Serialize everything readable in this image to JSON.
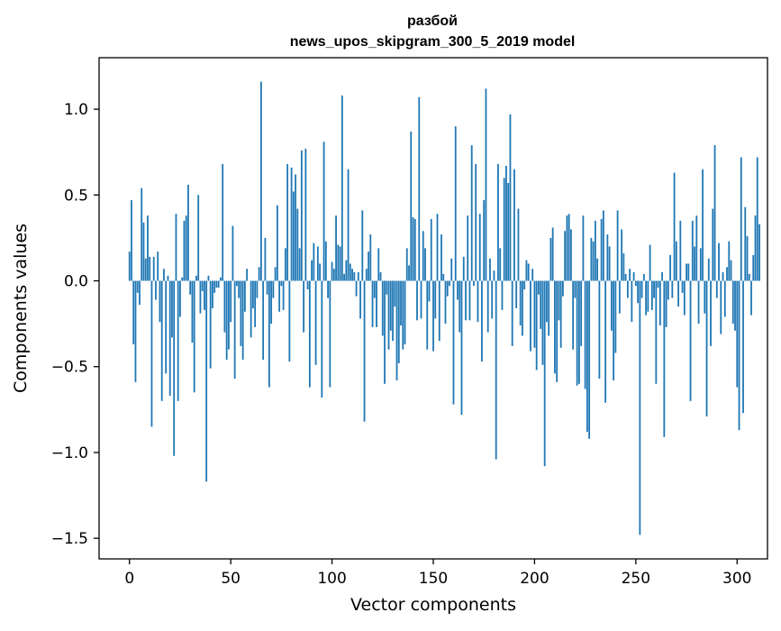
{
  "chart_data": {
    "type": "bar",
    "title": "разбой",
    "subtitle": "news_upos_skipgram_300_5_2019 model",
    "xlabel": "Vector components",
    "ylabel": "Components values",
    "xlim": [
      -15,
      315
    ],
    "ylim": [
      -1.62,
      1.3
    ],
    "xticks": [
      0,
      50,
      100,
      150,
      200,
      250,
      300
    ],
    "xtick_labels": [
      "0",
      "50",
      "100",
      "150",
      "200",
      "250",
      "300"
    ],
    "yticks": [
      -1.5,
      -1.0,
      -0.5,
      0.0,
      0.5,
      1.0
    ],
    "ytick_labels": [
      "−1.5",
      "−1.0",
      "−0.5",
      "0.0",
      "0.5",
      "1.0"
    ],
    "color": "#1f77b4",
    "bar_width": 0.8,
    "values": [
      0.17,
      0.47,
      -0.37,
      -0.59,
      -0.07,
      -0.14,
      0.54,
      0.34,
      0.13,
      0.38,
      0.14,
      -0.85,
      0.14,
      -0.11,
      0.17,
      -0.24,
      -0.7,
      0.07,
      -0.54,
      0.03,
      -0.67,
      -0.33,
      -1.02,
      0.39,
      -0.7,
      -0.21,
      0.02,
      0.35,
      0.38,
      0.56,
      -0.08,
      -0.36,
      -0.65,
      0.03,
      0.5,
      -0.19,
      -0.06,
      -0.17,
      -1.17,
      0.03,
      -0.51,
      -0.16,
      -0.07,
      -0.04,
      -0.04,
      0.02,
      0.68,
      -0.3,
      -0.46,
      -0.4,
      -0.24,
      0.32,
      -0.57,
      -0.03,
      -0.1,
      -0.38,
      -0.46,
      -0.18,
      0.07,
      0.0,
      -0.33,
      -0.16,
      -0.27,
      -0.1,
      0.08,
      1.16,
      -0.46,
      0.25,
      -0.08,
      -0.62,
      -0.25,
      -0.1,
      0.08,
      0.44,
      -0.18,
      -0.03,
      -0.17,
      0.19,
      0.68,
      -0.47,
      0.66,
      0.52,
      0.62,
      0.42,
      0.19,
      0.76,
      -0.3,
      0.77,
      -0.05,
      -0.62,
      0.12,
      0.22,
      -0.49,
      0.2,
      0.1,
      -0.68,
      0.81,
      0.23,
      -0.1,
      -0.62,
      0.11,
      0.07,
      0.38,
      0.21,
      0.2,
      1.08,
      0.04,
      0.12,
      0.65,
      0.1,
      0.07,
      0.05,
      -0.09,
      0.05,
      -0.22,
      0.41,
      -0.82,
      0.07,
      0.17,
      0.27,
      -0.27,
      -0.1,
      -0.27,
      0.19,
      0.05,
      -0.32,
      -0.6,
      -0.08,
      -0.4,
      -0.29,
      -0.35,
      -0.15,
      -0.58,
      -0.48,
      -0.26,
      -0.4,
      -0.37,
      0.19,
      0.09,
      0.87,
      0.37,
      0.36,
      -0.23,
      1.07,
      -0.22,
      0.29,
      0.19,
      -0.4,
      -0.12,
      0.36,
      -0.41,
      -0.22,
      0.39,
      -0.35,
      0.27,
      0.04,
      -0.25,
      -0.09,
      -0.03,
      0.13,
      -0.72,
      0.9,
      -0.11,
      -0.3,
      -0.78,
      0.14,
      -0.23,
      0.38,
      -0.23,
      0.79,
      -0.03,
      0.68,
      -0.24,
      0.39,
      -0.47,
      0.47,
      1.12,
      -0.3,
      0.13,
      -0.22,
      0.06,
      -1.04,
      0.68,
      0.19,
      -0.17,
      0.6,
      0.67,
      0.57,
      0.97,
      -0.38,
      0.65,
      -0.16,
      0.42,
      -0.26,
      -0.32,
      -0.05,
      0.12,
      0.1,
      -0.41,
      0.07,
      -0.39,
      -0.52,
      -0.08,
      -0.28,
      -0.49,
      -1.08,
      -0.24,
      -0.32,
      0.25,
      0.31,
      -0.54,
      -0.59,
      -0.23,
      -0.39,
      -0.09,
      0.29,
      0.38,
      0.39,
      0.3,
      -0.4,
      -0.1,
      -0.61,
      -0.6,
      -0.38,
      0.38,
      -0.63,
      -0.88,
      -0.92,
      0.25,
      0.23,
      0.35,
      0.13,
      -0.57,
      0.36,
      0.41,
      -0.71,
      0.27,
      0.2,
      -0.29,
      -0.58,
      -0.42,
      0.41,
      -0.19,
      0.3,
      0.16,
      0.04,
      -0.1,
      0.07,
      -0.24,
      0.05,
      -0.03,
      -0.13,
      -1.48,
      -0.1,
      0.04,
      -0.2,
      -0.18,
      0.21,
      -0.17,
      -0.1,
      -0.6,
      -0.04,
      -0.26,
      0.05,
      -0.91,
      -0.27,
      -0.11,
      0.15,
      -0.1,
      0.63,
      0.23,
      -0.15,
      0.35,
      -0.07,
      -0.2,
      0.1,
      0.1,
      -0.7,
      0.35,
      0.2,
      0.38,
      -0.25,
      0.19,
      0.65,
      -0.19,
      -0.79,
      0.13,
      -0.38,
      0.42,
      0.79,
      -0.1,
      0.22,
      -0.31,
      0.05,
      -0.21,
      0.08,
      0.23,
      0.12,
      -0.25,
      -0.29,
      -0.62,
      -0.87,
      0.72,
      -0.77,
      0.43,
      0.26,
      0.04,
      -0.2,
      0.15,
      0.38,
      0.72,
      0.33
    ]
  }
}
